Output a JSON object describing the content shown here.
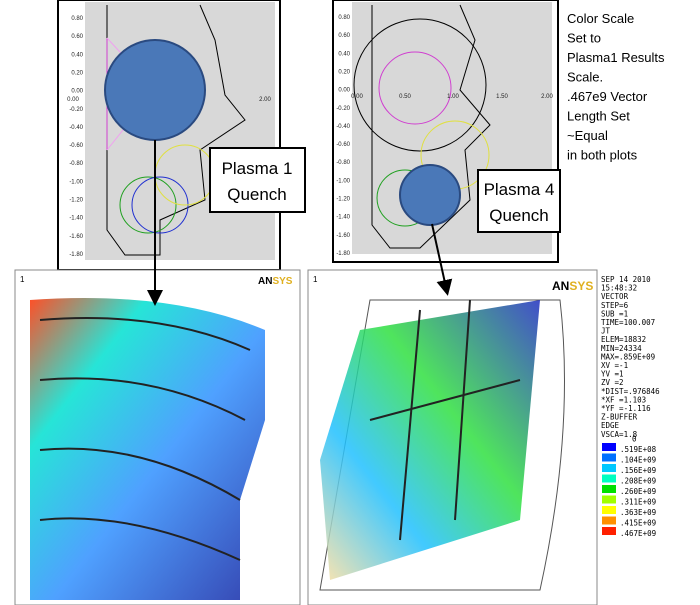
{
  "top_left_plot": {
    "y_ticks": [
      "0.80",
      "0.60",
      "0.40",
      "0.20",
      "0.00",
      "-0.20",
      "-0.40",
      "-0.60",
      "-0.80",
      "-1.00",
      "-1.20",
      "-1.40",
      "-1.60",
      "-1.80"
    ],
    "x_ticks": [
      "0.00",
      "2.00"
    ]
  },
  "top_right_plot": {
    "y_ticks": [
      "0.80",
      "0.60",
      "0.40",
      "0.20",
      "0.00",
      "-0.20",
      "-0.40",
      "-0.60",
      "-0.80",
      "-1.00",
      "-1.20",
      "-1.40",
      "-1.60",
      "-1.80"
    ],
    "x_ticks": [
      "0.00",
      "0.50",
      "1.00",
      "1.50",
      "2.00"
    ]
  },
  "callouts": [
    {
      "lines": [
        "Plasma 1",
        "Quench"
      ]
    },
    {
      "lines": [
        "Plasma 4",
        "Quench"
      ]
    }
  ],
  "note": {
    "lines": [
      "Color Scale",
      "Set to",
      "Plasma1 Results",
      "Scale.",
      ".467e9 Vector",
      "Length Set",
      "~Equal",
      " in both plots"
    ]
  },
  "left_result": {
    "window_number": "1",
    "logo": [
      "AN",
      "SYS"
    ]
  },
  "right_result": {
    "window_number": "1",
    "logo": [
      "AN",
      "SYS"
    ],
    "info": [
      "SEP 14 2010",
      "15:48:32",
      "VECTOR",
      "STEP=6",
      "SUB =1",
      "TIME=100.007",
      "JT",
      "ELEM=18832",
      "MIN=24334",
      "MAX=.859E+09"
    ],
    "view": [
      "XV  =-1",
      "YV  =1",
      "ZV  =2",
      "*DIST=.976846",
      "*XF  =1.103",
      "*YF  =-1.116",
      "Z-BUFFER",
      "EDGE",
      "VSCA=1.8"
    ],
    "color_scale": {
      "labels": [
        "0",
        ".519E+08",
        ".104E+09",
        ".156E+09",
        ".208E+09",
        ".260E+09",
        ".311E+09",
        ".363E+09",
        ".415E+09",
        ".467E+09"
      ],
      "colors": [
        "#0000ff",
        "#0070ff",
        "#00c8ff",
        "#00ffc0",
        "#00e000",
        "#a0ff00",
        "#ffff00",
        "#ff9000",
        "#ff2000"
      ]
    }
  }
}
